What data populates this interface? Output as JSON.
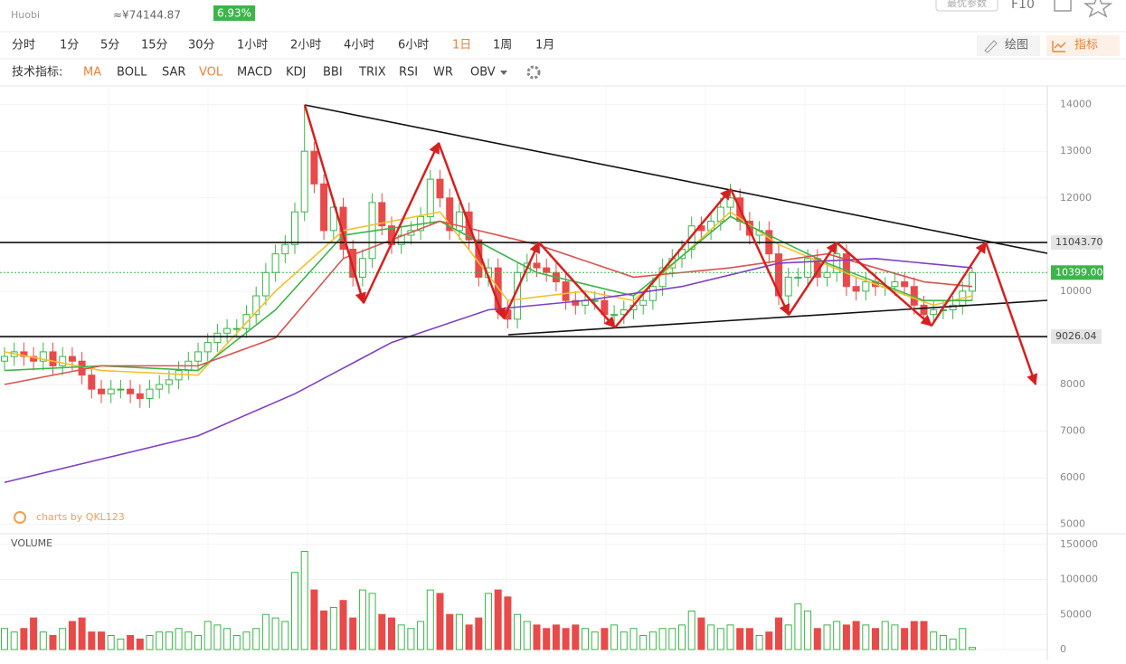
{
  "header": {
    "exchange": "Huobi",
    "cny_price": "≈¥74144.87",
    "change": "6.93%",
    "params_button": "最优参数",
    "f10": "F10"
  },
  "toolbar": {
    "periods": [
      "分时",
      "1分",
      "5分",
      "15分",
      "30分",
      "1小时",
      "2小时",
      "4小时",
      "6小时",
      "1日",
      "1周",
      "1月"
    ],
    "active_period": 9,
    "draw": "绘图",
    "indicators": "指标"
  },
  "indicator_bar": {
    "label": "技术指标:",
    "items": [
      "MA",
      "BOLL",
      "SAR",
      "VOL",
      "MACD",
      "KDJ",
      "BBI",
      "TRIX",
      "RSI",
      "WR",
      "OBV"
    ],
    "active": [
      0,
      3
    ]
  },
  "watermark": "charts by QKL123",
  "chart_data": [
    {
      "type": "candlestick",
      "up_color": "#3cb54a",
      "down_color": "#e84a4a",
      "open": [
        8500,
        8600,
        8700,
        8600,
        8500,
        8700,
        8400,
        8600,
        8500,
        8200,
        7900,
        7800,
        7900,
        7900,
        7800,
        7700,
        7900,
        8000,
        8100,
        8300,
        8500,
        8700,
        8900,
        9100,
        9200,
        9200,
        9500,
        9900,
        10400,
        10800,
        11000,
        11700,
        13000,
        12300,
        11300,
        11800,
        10900,
        10300,
        10700,
        11900,
        11400,
        11000,
        11200,
        11300,
        11600,
        12400,
        12000,
        11300,
        11700,
        11100,
        10300,
        10500,
        9600,
        9400,
        10400,
        10600,
        10500,
        10400,
        10200,
        9800,
        9700,
        9800,
        9800,
        9500,
        9500,
        9600,
        9700,
        9800,
        10100,
        10500,
        10700,
        10900,
        11400,
        11300,
        11500,
        11800,
        12000,
        11500,
        11200,
        11300,
        10800,
        9900,
        10300,
        10300,
        10700,
        10300,
        10400,
        10800,
        10100,
        10000,
        10200,
        10100,
        10100,
        10200,
        10100,
        9700,
        9500,
        9600,
        9600,
        9700,
        10000
      ],
      "high": [
        8800,
        8900,
        8900,
        8800,
        8900,
        8900,
        8800,
        8800,
        8700,
        8400,
        8100,
        8100,
        8100,
        8100,
        8000,
        8100,
        8200,
        8300,
        8500,
        8700,
        8900,
        9100,
        9300,
        9400,
        9400,
        9700,
        10100,
        10600,
        11000,
        11200,
        11900,
        14000,
        13200,
        12500,
        12000,
        12000,
        11100,
        10900,
        12100,
        12100,
        11600,
        11400,
        11500,
        11800,
        12600,
        12600,
        12200,
        11900,
        11900,
        11300,
        10700,
        10700,
        9800,
        10600,
        10800,
        10800,
        10700,
        10600,
        10400,
        10000,
        10000,
        10000,
        10000,
        9700,
        9800,
        9900,
        10000,
        10300,
        10700,
        10900,
        11100,
        11600,
        11600,
        11700,
        12000,
        12300,
        12200,
        11700,
        11500,
        11500,
        11000,
        10500,
        10500,
        10900,
        10900,
        10600,
        11000,
        11000,
        10300,
        10400,
        10400,
        10300,
        10400,
        10400,
        10300,
        9900,
        9800,
        9800,
        9900,
        10200,
        10500
      ],
      "low": [
        8300,
        8400,
        8400,
        8300,
        8300,
        8200,
        8200,
        8300,
        8000,
        7700,
        7600,
        7600,
        7700,
        7600,
        7500,
        7500,
        7700,
        7800,
        7900,
        8100,
        8300,
        8500,
        8700,
        8900,
        9000,
        9000,
        9300,
        9700,
        10200,
        10600,
        10800,
        11500,
        12100,
        11100,
        11100,
        10700,
        10100,
        10100,
        10500,
        11200,
        10800,
        10800,
        11000,
        11100,
        11400,
        11800,
        11100,
        11100,
        10900,
        10100,
        10100,
        9400,
        9200,
        9200,
        10200,
        10300,
        10200,
        10000,
        9600,
        9500,
        9500,
        9600,
        9300,
        9300,
        9300,
        9400,
        9500,
        9600,
        9900,
        10300,
        10500,
        10700,
        11100,
        11100,
        11300,
        11600,
        11300,
        11000,
        11000,
        10600,
        9700,
        9700,
        10100,
        10100,
        10100,
        10100,
        10200,
        9900,
        9800,
        9800,
        9900,
        9900,
        9900,
        9900,
        9500,
        9300,
        9300,
        9400,
        9400,
        9500,
        9800
      ],
      "close": [
        8600,
        8700,
        8600,
        8500,
        8700,
        8400,
        8600,
        8500,
        8200,
        7900,
        7800,
        7900,
        7900,
        7800,
        7700,
        7900,
        8000,
        8100,
        8300,
        8500,
        8700,
        8900,
        9100,
        9200,
        9200,
        9500,
        9900,
        10400,
        10800,
        11000,
        11700,
        13000,
        12300,
        11300,
        11800,
        10900,
        10300,
        10700,
        11900,
        11400,
        11000,
        11200,
        11300,
        11600,
        12400,
        12000,
        11300,
        11700,
        11100,
        10300,
        10500,
        9600,
        9400,
        10400,
        10600,
        10500,
        10400,
        10200,
        9800,
        9700,
        9800,
        9800,
        9500,
        9500,
        9600,
        9700,
        9800,
        10100,
        10500,
        10700,
        10900,
        11400,
        11300,
        11500,
        11800,
        12000,
        11500,
        11200,
        11300,
        10800,
        9900,
        10300,
        10300,
        10700,
        10300,
        10400,
        10800,
        10100,
        10000,
        10200,
        10100,
        10100,
        10200,
        10100,
        9700,
        9500,
        9600,
        9600,
        9700,
        10000,
        10399
      ],
      "overlays": [
        {
          "color": "#f2c12e",
          "x": [
            0,
            10,
            20,
            28,
            35,
            45,
            52,
            60,
            65,
            75,
            80,
            88,
            96,
            100
          ],
          "values": [
            8700,
            8300,
            8200,
            10000,
            11300,
            11700,
            9800,
            10000,
            9800,
            11700,
            11000,
            10300,
            9700,
            9900
          ]
        },
        {
          "color": "#3cb54a",
          "x": [
            0,
            10,
            20,
            28,
            35,
            45,
            55,
            65,
            75,
            85,
            95,
            100
          ],
          "values": [
            8300,
            8400,
            8300,
            9600,
            11200,
            11500,
            10400,
            9900,
            11600,
            10600,
            9800,
            9800
          ]
        },
        {
          "color": "#d9534f",
          "x": [
            0,
            10,
            20,
            28,
            35,
            45,
            55,
            65,
            75,
            85,
            95,
            100
          ],
          "values": [
            8000,
            8400,
            8400,
            9000,
            10700,
            11500,
            11000,
            10300,
            10500,
            10800,
            10200,
            10100
          ]
        },
        {
          "color": "#7e3fc4",
          "x": [
            0,
            10,
            20,
            30,
            40,
            50,
            60,
            70,
            80,
            90,
            100
          ],
          "values": [
            5900,
            6400,
            6900,
            7800,
            8900,
            9600,
            9800,
            10100,
            10600,
            10700,
            10500
          ]
        }
      ],
      "price_lines": [
        {
          "value": 11043.7,
          "label": "11043.70"
        },
        {
          "value": 9026.04,
          "label": "9026.04"
        }
      ],
      "last_price": {
        "value": 10399,
        "label": "10399.00",
        "color": "#3cb54a"
      },
      "ylim": [
        4800,
        14400
      ],
      "yticks": [
        5000,
        6000,
        7000,
        8000,
        9000,
        10000,
        11000,
        12000,
        13000,
        14000
      ],
      "grid": true
    },
    {
      "type": "bar",
      "title": "VOLUME",
      "values": [
        30000,
        25000,
        30000,
        45000,
        25000,
        20000,
        30000,
        40000,
        45000,
        25000,
        25000,
        20000,
        15000,
        20000,
        15000,
        20000,
        25000,
        25000,
        30000,
        25000,
        20000,
        40000,
        35000,
        30000,
        20000,
        25000,
        30000,
        50000,
        45000,
        40000,
        110000,
        140000,
        85000,
        55000,
        60000,
        70000,
        45000,
        85000,
        80000,
        50000,
        45000,
        35000,
        30000,
        40000,
        85000,
        80000,
        50000,
        50000,
        35000,
        45000,
        80000,
        85000,
        75000,
        50000,
        40000,
        35000,
        30000,
        35000,
        30000,
        35000,
        30000,
        25000,
        30000,
        35000,
        25000,
        30000,
        20000,
        25000,
        30000,
        30000,
        35000,
        55000,
        45000,
        35000,
        30000,
        35000,
        30000,
        30000,
        20000,
        25000,
        45000,
        35000,
        65000,
        55000,
        30000,
        35000,
        40000,
        35000,
        40000,
        35000,
        30000,
        40000,
        35000,
        30000,
        40000,
        40000,
        25000,
        20000,
        15000,
        30000,
        3000
      ],
      "ylim": [
        0,
        160000
      ],
      "yticks": [
        0,
        50000,
        100000,
        150000
      ]
    }
  ]
}
